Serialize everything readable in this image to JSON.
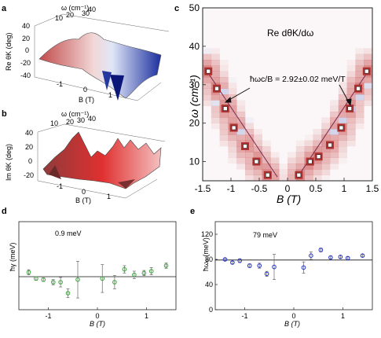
{
  "chart_data": [
    {
      "panel": "a",
      "type": "surface3d",
      "xlabel": "B (T)",
      "x_ticks": [
        "-1",
        "0",
        "1"
      ],
      "ylabel": "ω (cm⁻¹)",
      "y_ticks": [
        "10",
        "20",
        "30",
        "40"
      ],
      "zlabel": "Re θK (deg)",
      "z_ticks": [
        "40",
        "20",
        "0",
        "-20",
        "-40"
      ]
    },
    {
      "panel": "b",
      "type": "surface3d",
      "xlabel": "B (T)",
      "x_ticks": [
        "-1",
        "0",
        "1"
      ],
      "ylabel": "ω (cm⁻¹)",
      "y_ticks": [
        "10",
        "20",
        "30",
        "40"
      ],
      "zlabel": "Im θK (deg)",
      "z_ticks": [
        "40",
        "20",
        "0",
        "-20"
      ]
    },
    {
      "panel": "c",
      "type": "heatmap",
      "title": "Re dθK/dω",
      "annotation": "ħωc/B = 2.92±0.02 meV/T",
      "xlabel": "B (T)",
      "ylabel": "ω (cm⁻¹)",
      "xlim": [
        -1.5,
        1.5
      ],
      "ylim": [
        5,
        50
      ],
      "x_ticks": [
        "-1.5",
        "-1",
        "-0.5",
        "0",
        "0.5",
        "1",
        "1.5"
      ],
      "y_ticks": [
        "10",
        "20",
        "30",
        "40",
        "50"
      ],
      "peaks_left": {
        "x": [
          -1.4,
          -1.25,
          -1.1,
          -0.95,
          -0.75,
          -0.55,
          -0.35
        ],
        "y": [
          33.5,
          29,
          23.8,
          18.8,
          14,
          10,
          6.5
        ]
      },
      "peaks_right": {
        "x": [
          0.2,
          0.4,
          0.55,
          0.75,
          0.95,
          1.1,
          1.25,
          1.4
        ],
        "y": [
          6.5,
          10,
          11.3,
          14.3,
          18.8,
          23.8,
          29,
          33.5
        ]
      },
      "fit_slope_cm_per_T": 23.5
    },
    {
      "panel": "d",
      "type": "scatter",
      "xlabel": "B (T)",
      "ylabel": "ħγ (meV)",
      "xlim": [
        -1.6,
        1.6
      ],
      "ylim": [
        0,
        2.4
      ],
      "x_ticks": [
        -1,
        0,
        1
      ],
      "reference_line": 0.9,
      "reference_label": "0.9 meV",
      "color": "#3aa33a",
      "points": [
        {
          "x": -1.4,
          "y": 1.02,
          "err": 0.07
        },
        {
          "x": -1.25,
          "y": 0.85,
          "err": 0.05
        },
        {
          "x": -1.1,
          "y": 0.82,
          "err": 0.05
        },
        {
          "x": -0.9,
          "y": 0.75,
          "err": 0.07
        },
        {
          "x": -0.75,
          "y": 0.75,
          "err": 0.13
        },
        {
          "x": -0.6,
          "y": 0.45,
          "err": 0.12
        },
        {
          "x": -0.4,
          "y": 0.82,
          "err": 0.5
        },
        {
          "x": 0.1,
          "y": 0.85,
          "err": 0.38
        },
        {
          "x": 0.35,
          "y": 0.75,
          "err": 0.18
        },
        {
          "x": 0.55,
          "y": 1.1,
          "err": 0.1
        },
        {
          "x": 0.75,
          "y": 0.95,
          "err": 0.1
        },
        {
          "x": 0.95,
          "y": 1.0,
          "err": 0.07
        },
        {
          "x": 1.1,
          "y": 1.05,
          "err": 0.1
        },
        {
          "x": 1.4,
          "y": 1.2,
          "err": 0.07
        }
      ]
    },
    {
      "panel": "e",
      "type": "scatter",
      "xlabel": "B (T)",
      "ylabel": "ħωₚ (meV)",
      "xlim": [
        -1.6,
        1.6
      ],
      "ylim": [
        0,
        140
      ],
      "x_ticks": [
        -1,
        0,
        1
      ],
      "y_ticks": [
        0,
        40,
        80,
        120
      ],
      "reference_line": 79,
      "reference_label": "79 meV",
      "color": "#2233cc",
      "points": [
        {
          "x": -1.4,
          "y": 80,
          "err": 2
        },
        {
          "x": -1.25,
          "y": 75,
          "err": 2
        },
        {
          "x": -1.1,
          "y": 78,
          "err": 3
        },
        {
          "x": -0.9,
          "y": 70,
          "err": 3
        },
        {
          "x": -0.7,
          "y": 70,
          "err": 4
        },
        {
          "x": -0.55,
          "y": 57,
          "err": 4
        },
        {
          "x": -0.4,
          "y": 68,
          "err": 20
        },
        {
          "x": 0.2,
          "y": 67,
          "err": 9
        },
        {
          "x": 0.35,
          "y": 86,
          "err": 6
        },
        {
          "x": 0.55,
          "y": 95,
          "err": 3
        },
        {
          "x": 0.75,
          "y": 83,
          "err": 2
        },
        {
          "x": 0.95,
          "y": 84,
          "err": 2
        },
        {
          "x": 1.1,
          "y": 82,
          "err": 2
        },
        {
          "x": 1.4,
          "y": 86,
          "err": 2
        }
      ]
    }
  ],
  "labels": {
    "a": "a",
    "b": "b",
    "c": "c",
    "d": "d",
    "e": "e",
    "omega_unit": "ω (cm⁻¹)",
    "b_axis": "B (T)",
    "re_theta": "Re θK (deg)",
    "im_theta": "Im θK (deg)"
  }
}
